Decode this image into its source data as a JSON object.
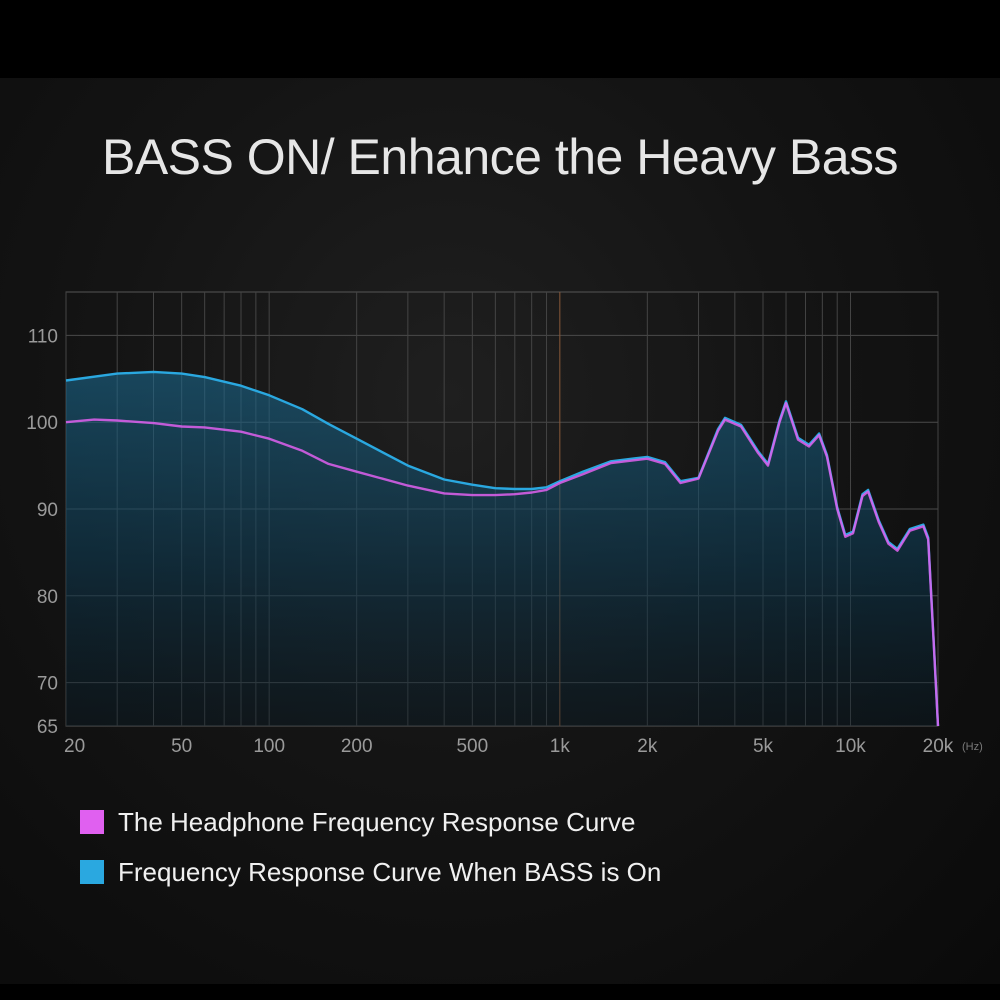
{
  "chart_data": {
    "type": "line",
    "title": "BASS ON/ Enhance the Heavy Bass",
    "xscale": "log",
    "xlim": [
      20,
      20000
    ],
    "ylim": [
      65,
      115
    ],
    "x_ticks": [
      20,
      50,
      100,
      200,
      500,
      1000,
      2000,
      5000,
      10000,
      20000
    ],
    "x_tick_labels": [
      "20",
      "50",
      "100",
      "200",
      "500",
      "1k",
      "2k",
      "5k",
      "10k",
      "20k"
    ],
    "x_unit": "(Hz)",
    "y_ticks": [
      65,
      70,
      80,
      90,
      100,
      110
    ],
    "y_tick_labels": [
      "65",
      "70",
      "80",
      "90",
      "100",
      "110"
    ],
    "grid": true,
    "legend_placement": "bottom",
    "series": [
      {
        "name": "The Headphone Frequency Response Curve",
        "color": "#e060f0",
        "points": [
          [
            20,
            100
          ],
          [
            25,
            100.3
          ],
          [
            30,
            100.2
          ],
          [
            40,
            99.9
          ],
          [
            50,
            99.5
          ],
          [
            60,
            99.4
          ],
          [
            80,
            98.9
          ],
          [
            100,
            98.1
          ],
          [
            130,
            96.7
          ],
          [
            160,
            95.2
          ],
          [
            200,
            94.3
          ],
          [
            300,
            92.7
          ],
          [
            400,
            91.8
          ],
          [
            500,
            91.6
          ],
          [
            600,
            91.6
          ],
          [
            700,
            91.7
          ],
          [
            800,
            91.9
          ],
          [
            900,
            92.2
          ],
          [
            1000,
            93
          ],
          [
            1200,
            94
          ],
          [
            1500,
            95.3
          ],
          [
            2000,
            95.8
          ],
          [
            2300,
            95.2
          ],
          [
            2600,
            93
          ],
          [
            3000,
            93.5
          ],
          [
            3500,
            99
          ],
          [
            3700,
            100.3
          ],
          [
            4200,
            99.5
          ],
          [
            4800,
            96.5
          ],
          [
            5200,
            95
          ],
          [
            5700,
            100
          ],
          [
            6000,
            102.2
          ],
          [
            6600,
            98
          ],
          [
            7200,
            97.2
          ],
          [
            7800,
            98.5
          ],
          [
            8300,
            96
          ],
          [
            9000,
            90
          ],
          [
            9600,
            86.8
          ],
          [
            10200,
            87.2
          ],
          [
            11000,
            91.5
          ],
          [
            11500,
            92
          ],
          [
            12500,
            88.5
          ],
          [
            13500,
            86
          ],
          [
            14500,
            85.2
          ],
          [
            16000,
            87.5
          ],
          [
            17800,
            88
          ],
          [
            18500,
            86.5
          ],
          [
            19300,
            75
          ],
          [
            20000,
            65
          ]
        ]
      },
      {
        "name": "Frequency Response Curve When BASS is On",
        "color": "#2aa8e0",
        "points": [
          [
            20,
            104.8
          ],
          [
            30,
            105.6
          ],
          [
            40,
            105.8
          ],
          [
            50,
            105.6
          ],
          [
            60,
            105.2
          ],
          [
            80,
            104.2
          ],
          [
            100,
            103.1
          ],
          [
            130,
            101.5
          ],
          [
            160,
            99.8
          ],
          [
            200,
            98.1
          ],
          [
            300,
            95
          ],
          [
            400,
            93.4
          ],
          [
            500,
            92.8
          ],
          [
            600,
            92.4
          ],
          [
            700,
            92.3
          ],
          [
            800,
            92.3
          ],
          [
            900,
            92.5
          ],
          [
            1000,
            93.2
          ],
          [
            1200,
            94.3
          ],
          [
            1500,
            95.5
          ],
          [
            2000,
            96
          ],
          [
            2300,
            95.4
          ],
          [
            2600,
            93.2
          ],
          [
            3000,
            93.6
          ],
          [
            3500,
            99.2
          ],
          [
            3700,
            100.5
          ],
          [
            4200,
            99.7
          ],
          [
            4800,
            96.7
          ],
          [
            5200,
            95.2
          ],
          [
            5700,
            100.2
          ],
          [
            6000,
            102.4
          ],
          [
            6600,
            98.2
          ],
          [
            7200,
            97.4
          ],
          [
            7800,
            98.7
          ],
          [
            8300,
            96.2
          ],
          [
            9000,
            90.2
          ],
          [
            9600,
            87
          ],
          [
            10200,
            87.4
          ],
          [
            11000,
            91.7
          ],
          [
            11500,
            92.2
          ],
          [
            12500,
            88.7
          ],
          [
            13500,
            86.2
          ],
          [
            14500,
            85.4
          ],
          [
            16000,
            87.7
          ],
          [
            17800,
            88.2
          ],
          [
            18500,
            86.7
          ],
          [
            19300,
            75.2
          ],
          [
            20000,
            65
          ]
        ]
      }
    ]
  }
}
